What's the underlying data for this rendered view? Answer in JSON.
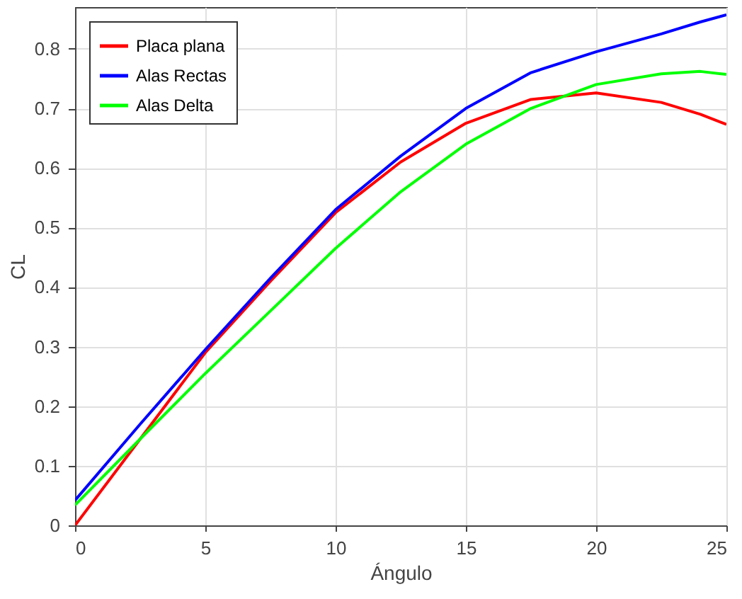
{
  "chart_data": {
    "type": "line",
    "xlabel": "Ángulo",
    "ylabel": "CL",
    "x": [
      0,
      2.5,
      5,
      7.5,
      10,
      12.5,
      15,
      17.5,
      20,
      22.5,
      24,
      25
    ],
    "series": [
      {
        "name": "Placa plana",
        "color": "#ff0000",
        "values": [
          0,
          0.145,
          0.29,
          0.41,
          0.525,
          0.61,
          0.675,
          0.715,
          0.726,
          0.71,
          0.69,
          0.673
        ]
      },
      {
        "name": "Alas Rectas",
        "color": "#0000ff",
        "values": [
          0.042,
          0.17,
          0.295,
          0.415,
          0.53,
          0.62,
          0.7,
          0.76,
          0.795,
          0.825,
          0.845,
          0.857
        ]
      },
      {
        "name": "Alas Delta",
        "color": "#00ff00",
        "values": [
          0.034,
          0.145,
          0.255,
          0.36,
          0.465,
          0.56,
          0.64,
          0.7,
          0.74,
          0.758,
          0.762,
          0.757
        ]
      }
    ],
    "xlim": [
      0,
      25
    ],
    "xticks": [
      0,
      5,
      10,
      15,
      20,
      25
    ],
    "ylim": [
      0,
      0.87
    ],
    "yticks": [
      0,
      0.1,
      0.2,
      0.3,
      0.4,
      0.5,
      0.6,
      0.7,
      0.8
    ],
    "grid": true,
    "legend": "top left",
    "line_style": "solid"
  }
}
